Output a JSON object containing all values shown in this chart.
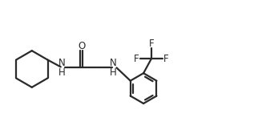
{
  "background": "#ffffff",
  "line_color": "#2a2a2a",
  "line_width": 1.6,
  "font_size": 8.5,
  "figsize": [
    3.27,
    1.72
  ],
  "dpi": 100,
  "xlim": [
    0.0,
    10.0
  ],
  "ylim": [
    0.5,
    5.5
  ]
}
